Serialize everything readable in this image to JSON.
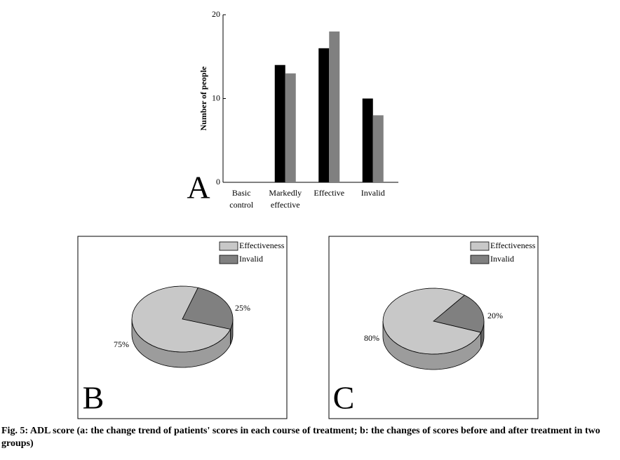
{
  "chart_data": [
    {
      "type": "bar",
      "panel": "A",
      "y_label": "Number of people",
      "categories": [
        "Basic control",
        "Markedly effective",
        "Effective",
        "Invalid"
      ],
      "series": [
        {
          "color": "#000000",
          "values": [
            0,
            14,
            16,
            10
          ]
        },
        {
          "color": "#808080",
          "values": [
            0,
            13,
            18,
            8
          ]
        }
      ],
      "ylim": [
        0,
        20
      ],
      "yticks": [
        0,
        10,
        20
      ]
    },
    {
      "type": "pie",
      "panel": "B",
      "categories": [
        "Effectiveness",
        "Invalid"
      ],
      "values": [
        75,
        25
      ],
      "value_labels": [
        "75%",
        "25%"
      ],
      "colors": [
        "#c8c8c8",
        "#808080"
      ]
    },
    {
      "type": "pie",
      "panel": "C",
      "categories": [
        "Effectiveness",
        "Invalid"
      ],
      "values": [
        80,
        20
      ],
      "value_labels": [
        "80%",
        "20%"
      ],
      "colors": [
        "#c8c8c8",
        "#808080"
      ]
    }
  ],
  "caption": "Fig. 5: ADL score (a: the change trend of patients' scores in each course of treatment; b: the changes of scores before and after treatment in two groups)"
}
